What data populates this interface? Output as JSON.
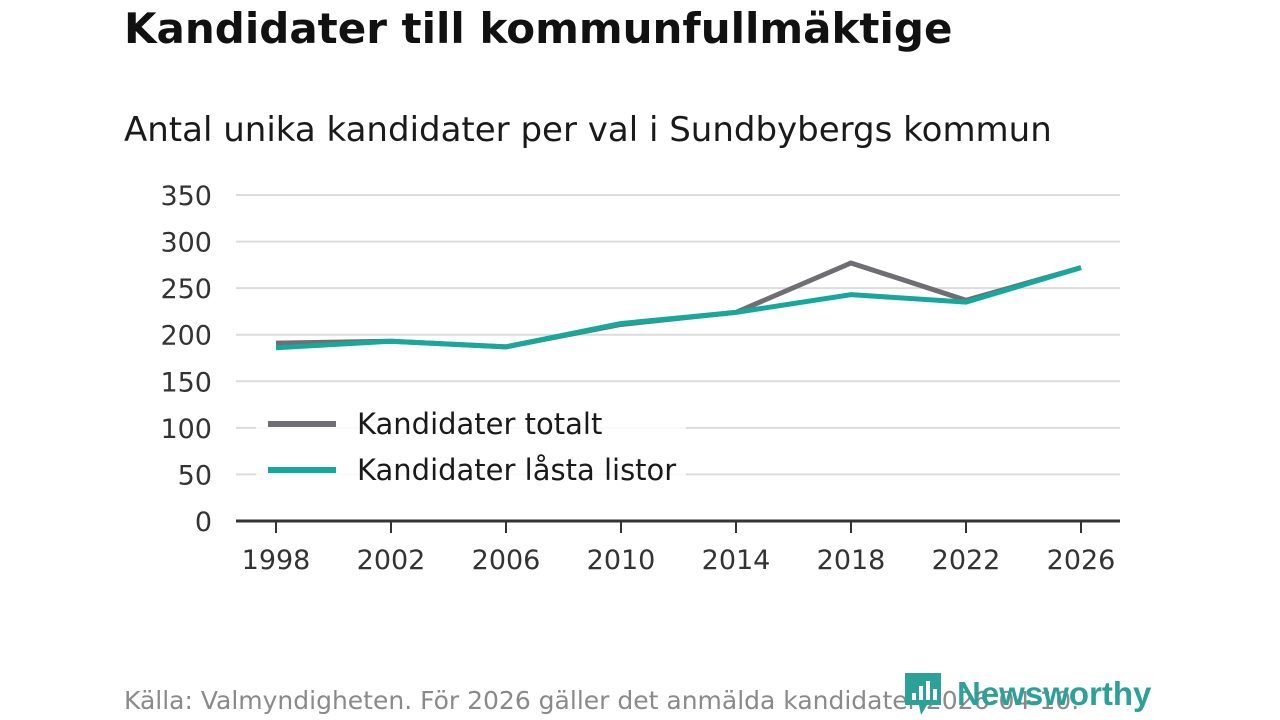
{
  "title": "Kandidater till kommunfullmäktige",
  "subtitle": "Antal unika kandidater per val i Sundbybergs kommun",
  "source": "Källa: Valmyndigheten. För 2026 gäller det anmälda kandidater 2026-04-10.",
  "brand": {
    "name": "Newsworthy",
    "color": "#2ba197"
  },
  "chart_data": {
    "type": "line",
    "title": "Kandidater till kommunfullmäktige",
    "subtitle": "Antal unika kandidater per val i Sundbybergs kommun",
    "xlabel": "",
    "ylabel": "",
    "x": [
      "1998",
      "2002",
      "2006",
      "2010",
      "2014",
      "2018",
      "2022",
      "2026"
    ],
    "ylim": [
      0,
      350
    ],
    "yticks": [
      "0",
      "50",
      "100",
      "150",
      "200",
      "250",
      "300",
      "350"
    ],
    "grid": true,
    "legend_position": "bottom-left",
    "series": [
      {
        "name": "Kandidater totalt",
        "color": "#6e6e73",
        "values": [
          191,
          193,
          187,
          211,
          224,
          277,
          237,
          272
        ]
      },
      {
        "name": "Kandidater låsta listor",
        "color": "#16a89c",
        "values": [
          186,
          193,
          187,
          212,
          224,
          243,
          235,
          272
        ]
      }
    ]
  }
}
